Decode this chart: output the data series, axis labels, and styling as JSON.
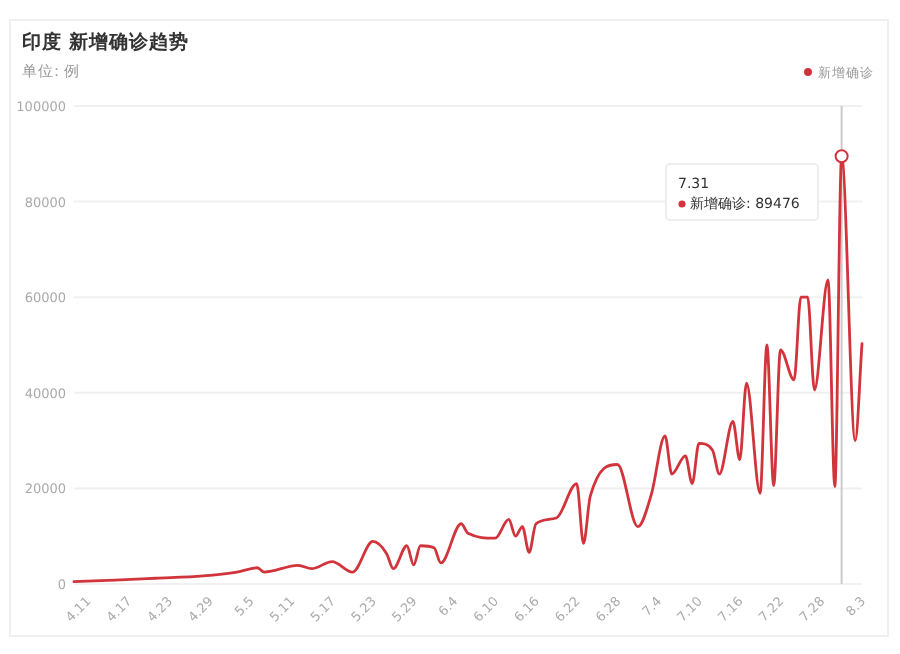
{
  "chart_data": {
    "type": "line",
    "title": "印度 新增确诊趋势",
    "subtitle": "单位: 例",
    "x": [
      "--04-09",
      "--04-15",
      "--04-21",
      "--04-28",
      "--05-03",
      "--05-06",
      "--05-07",
      "--05-12",
      "--05-14",
      "--05-17",
      "--05-20",
      "--05-23",
      "--05-25",
      "--05-26",
      "--05-28",
      "--05-29",
      "--05-30",
      "--06-01",
      "--06-02",
      "--06-05",
      "--06-06",
      "--06-10",
      "--06-12",
      "--06-13",
      "--06-14",
      "--06-15",
      "--06-16",
      "--06-19",
      "--06-22",
      "--06-23",
      "--06-24",
      "--06-28",
      "--07-01",
      "--07-03",
      "--07-05",
      "--07-06",
      "--07-08",
      "--07-09",
      "--07-10",
      "--07-12",
      "--07-13",
      "--07-15",
      "--07-16",
      "--07-17",
      "--07-19",
      "--07-20",
      "--07-21",
      "--07-22",
      "--07-24",
      "--07-25",
      "--07-26",
      "--07-27",
      "--07-29",
      "--07-30",
      "--07-31",
      "--08-02",
      "--08-03"
    ],
    "series": [
      {
        "name": "新增确诊",
        "color": "#d2343c",
        "values": [
          500,
          800,
          1200,
          1700,
          2500,
          3400,
          2500,
          3900,
          3200,
          4700,
          2500,
          8900,
          6400,
          3200,
          8000,
          4000,
          8000,
          7600,
          4400,
          12600,
          10600,
          9600,
          13500,
          10000,
          12000,
          6600,
          12600,
          13800,
          21000,
          8500,
          18400,
          25000,
          12000,
          18800,
          31000,
          23000,
          26800,
          21000,
          29400,
          28000,
          23000,
          34000,
          26000,
          42000,
          19000,
          50000,
          20600,
          49000,
          42700,
          60000,
          60000,
          40600,
          63600,
          20400,
          89476,
          30000,
          50300
        ]
      }
    ],
    "xlim": [
      "--04-09",
      "--08-03"
    ],
    "xticks": [
      {
        "value": "--04-11",
        "label": "4.11"
      },
      {
        "value": "--04-17",
        "label": "4.17"
      },
      {
        "value": "--04-23",
        "label": "4.23"
      },
      {
        "value": "--04-29",
        "label": "4.29"
      },
      {
        "value": "--05-05",
        "label": "5.5"
      },
      {
        "value": "--05-11",
        "label": "5.11"
      },
      {
        "value": "--05-17",
        "label": "5.17"
      },
      {
        "value": "--05-23",
        "label": "5.23"
      },
      {
        "value": "--05-29",
        "label": "5.29"
      },
      {
        "value": "--06-04",
        "label": "6.4"
      },
      {
        "value": "--06-10",
        "label": "6.10"
      },
      {
        "value": "--06-16",
        "label": "6.16"
      },
      {
        "value": "--06-22",
        "label": "6.22"
      },
      {
        "value": "--06-28",
        "label": "6.28"
      },
      {
        "value": "--07-04",
        "label": "7.4"
      },
      {
        "value": "--07-10",
        "label": "7.10"
      },
      {
        "value": "--07-16",
        "label": "7.16"
      },
      {
        "value": "--07-22",
        "label": "7.22"
      },
      {
        "value": "--07-28",
        "label": "7.28"
      },
      {
        "value": "--08-03",
        "label": "8.3"
      }
    ],
    "ylim": [
      0,
      100000
    ],
    "yticks": [
      0,
      20000,
      40000,
      60000,
      80000,
      100000
    ],
    "grid": "y",
    "legend": "top right",
    "marker": "none",
    "line_style": "solid",
    "ref_lines": [
      {
        "axis": "x",
        "value": "--07-31",
        "color": "#cccccc"
      }
    ],
    "annotations": [
      "7.31\n新增确诊: 89476"
    ]
  }
}
